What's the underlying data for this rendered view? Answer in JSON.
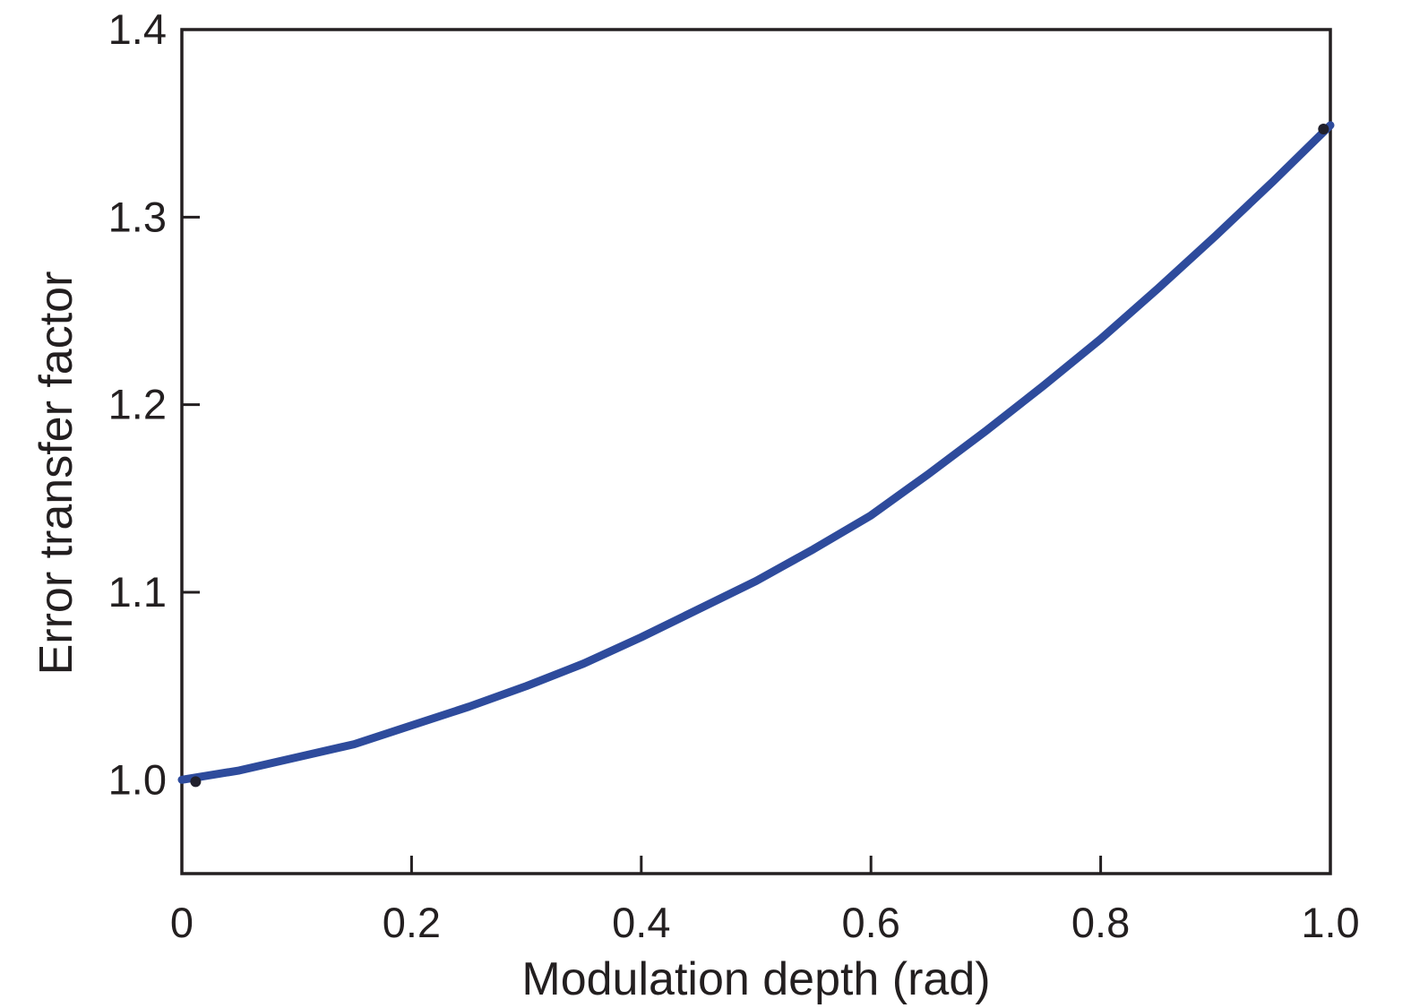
{
  "chart_data": {
    "type": "line",
    "title": "",
    "xlabel": "Modulation depth (rad)",
    "ylabel": "Error transfer factor",
    "xlim": [
      0,
      1.0
    ],
    "ylim": [
      0.95,
      1.4
    ],
    "x_ticks": [
      0,
      0.2,
      0.4,
      0.6,
      0.8,
      1.0
    ],
    "x_tick_labels": [
      "0",
      "0.2",
      "0.4",
      "0.6",
      "0.8",
      "1.0"
    ],
    "y_ticks": [
      1.0,
      1.1,
      1.2,
      1.3,
      1.4
    ],
    "y_tick_labels": [
      "1.0",
      "1.1",
      "1.2",
      "1.3",
      "1.4"
    ],
    "grid": false,
    "legend": null,
    "frame_color": "#231f20",
    "series": [
      {
        "name": "error-transfer-factor-curve",
        "color": "#2e4b9c",
        "x": [
          0.0,
          0.05,
          0.1,
          0.15,
          0.2,
          0.25,
          0.3,
          0.35,
          0.4,
          0.45,
          0.5,
          0.55,
          0.6,
          0.65,
          0.7,
          0.75,
          0.8,
          0.85,
          0.9,
          0.95,
          1.0
        ],
        "y": [
          1.0,
          1.005,
          1.012,
          1.019,
          1.029,
          1.039,
          1.05,
          1.062,
          1.076,
          1.091,
          1.106,
          1.123,
          1.141,
          1.163,
          1.186,
          1.21,
          1.235,
          1.262,
          1.29,
          1.319,
          1.349
        ]
      }
    ],
    "point_markers": {
      "color": "#20202c",
      "points": [
        {
          "x": 0.012,
          "y": 0.999
        },
        {
          "x": 0.994,
          "y": 1.347
        }
      ]
    }
  }
}
